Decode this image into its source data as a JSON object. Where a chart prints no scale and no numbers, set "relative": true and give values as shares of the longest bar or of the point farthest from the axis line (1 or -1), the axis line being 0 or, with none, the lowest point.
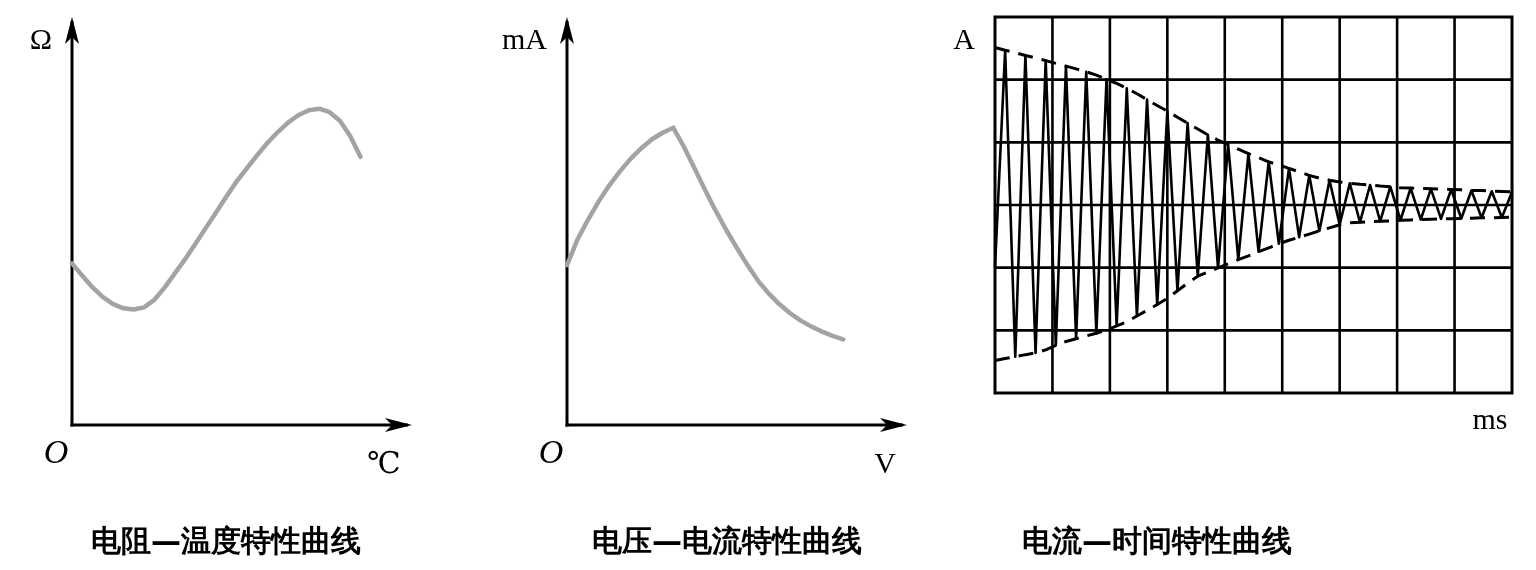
{
  "chart_data": [
    {
      "type": "line",
      "title": "电阻—温度特性曲线",
      "xlabel": "℃",
      "ylabel": "Ω",
      "annotations": [
        "O"
      ],
      "relative": true,
      "categories": [
        null,
        null,
        null,
        null,
        null,
        null,
        null,
        null,
        null,
        null,
        null,
        null,
        null,
        null,
        null,
        null,
        null,
        null,
        null,
        null,
        null,
        null,
        null,
        null,
        null,
        null,
        null,
        null,
        null,
        null,
        null,
        null,
        null,
        null
      ],
      "series": [
        {
          "color": "#a3a3a3",
          "values": [
            0.511,
            0.472,
            0.435,
            0.404,
            0.382,
            0.369,
            0.365,
            0.372,
            0.396,
            0.435,
            0.48,
            0.525,
            0.574,
            0.624,
            0.673,
            0.723,
            0.771,
            0.813,
            0.854,
            0.893,
            0.927,
            0.957,
            0.98,
            0.995,
            1,
            0.989,
            0.962,
            0.914,
            0.848,
            null,
            null,
            null,
            null,
            null
          ]
        }
      ]
    },
    {
      "type": "line",
      "title": "电压—电流特性曲线",
      "xlabel": "V",
      "ylabel": "mA",
      "annotations": [
        "O"
      ],
      "relative": true,
      "categories": [
        null,
        null,
        null,
        null,
        null,
        null,
        null,
        null,
        null,
        null,
        null,
        null,
        null,
        null,
        null,
        null,
        null,
        null,
        null,
        null,
        null,
        null,
        null,
        null,
        null,
        null,
        null,
        null,
        null,
        null,
        null,
        null,
        null
      ],
      "series": [
        {
          "color": "#a3a3a3",
          "values": [
            0.538,
            0.625,
            0.692,
            0.753,
            0.807,
            0.854,
            0.896,
            0.931,
            0.961,
            0.983,
            1,
            0.936,
            0.864,
            0.79,
            0.72,
            0.655,
            0.595,
            0.537,
            0.484,
            0.442,
            0.406,
            0.376,
            0.351,
            0.331,
            0.314,
            0.3,
            0.288,
            null,
            null,
            null,
            null,
            null,
            null
          ]
        }
      ]
    },
    {
      "type": "line",
      "title": "电流—时间特性曲线",
      "xlabel": "ms",
      "ylabel": "A",
      "relative": true,
      "grid": true,
      "categories": [
        null,
        null,
        null,
        null,
        null,
        null,
        null,
        null,
        null,
        null,
        null,
        null,
        null,
        null,
        null,
        null,
        null,
        null,
        null,
        null,
        null,
        null,
        null,
        null,
        null,
        null,
        null,
        null,
        null,
        null,
        null,
        null,
        null,
        null,
        null,
        null,
        null,
        null,
        null,
        null,
        null,
        null,
        null,
        null,
        null,
        null,
        null,
        null,
        null,
        null,
        null,
        null
      ],
      "series": [
        {
          "color": "#000000",
          "line_style": "solid",
          "values": [
            0.365,
            0.992,
            0.105,
            0.977,
            0.116,
            0.962,
            0.138,
            0.946,
            0.157,
            0.93,
            0.173,
            0.908,
            0.194,
            0.882,
            0.223,
            0.849,
            0.256,
            0.816,
            0.296,
            0.781,
            0.338,
            0.747,
            0.362,
            0.719,
            0.386,
            0.693,
            0.409,
            0.669,
            0.432,
            0.65,
            0.451,
            0.63,
            0.469,
            0.616,
            0.487,
            0.607,
            0.494,
            0.602,
            0.497,
            0.597,
            0.5,
            0.593,
            0.502,
            0.591,
            0.504,
            0.589,
            0.505,
            0.586,
            0.507,
            0.584,
            0.508,
            0.582
          ]
        },
        {
          "color": "#000000",
          "line_style": "dashed",
          "values": [
            1.0,
            0.992,
            0.985,
            0.977,
            0.97,
            0.962,
            0.954,
            0.946,
            0.938,
            0.93,
            0.92,
            0.908,
            0.896,
            0.882,
            0.866,
            0.849,
            0.832,
            0.816,
            0.798,
            0.781,
            0.764,
            0.747,
            0.732,
            0.719,
            0.706,
            0.693,
            0.681,
            0.669,
            0.66,
            0.65,
            0.64,
            0.63,
            0.622,
            0.616,
            0.611,
            0.607,
            0.604,
            0.602,
            0.599,
            0.597,
            0.594,
            0.593,
            0.592,
            0.591,
            0.59,
            0.589,
            0.588,
            0.586,
            0.586,
            0.584,
            0.583,
            0.582
          ]
        },
        {
          "color": "#000000",
          "line_style": "dashed",
          "values": [
            0.094,
            0.1,
            0.105,
            0.111,
            0.116,
            0.125,
            0.138,
            0.149,
            0.157,
            0.165,
            0.173,
            0.182,
            0.194,
            0.206,
            0.223,
            0.239,
            0.256,
            0.274,
            0.296,
            0.318,
            0.338,
            0.35,
            0.362,
            0.374,
            0.386,
            0.397,
            0.409,
            0.42,
            0.432,
            0.442,
            0.451,
            0.46,
            0.469,
            0.478,
            0.487,
            0.493,
            0.494,
            0.496,
            0.497,
            0.498,
            0.5,
            0.501,
            0.502,
            0.503,
            0.504,
            0.504,
            0.505,
            0.506,
            0.507,
            0.507,
            0.508,
            0.509
          ]
        }
      ]
    }
  ]
}
